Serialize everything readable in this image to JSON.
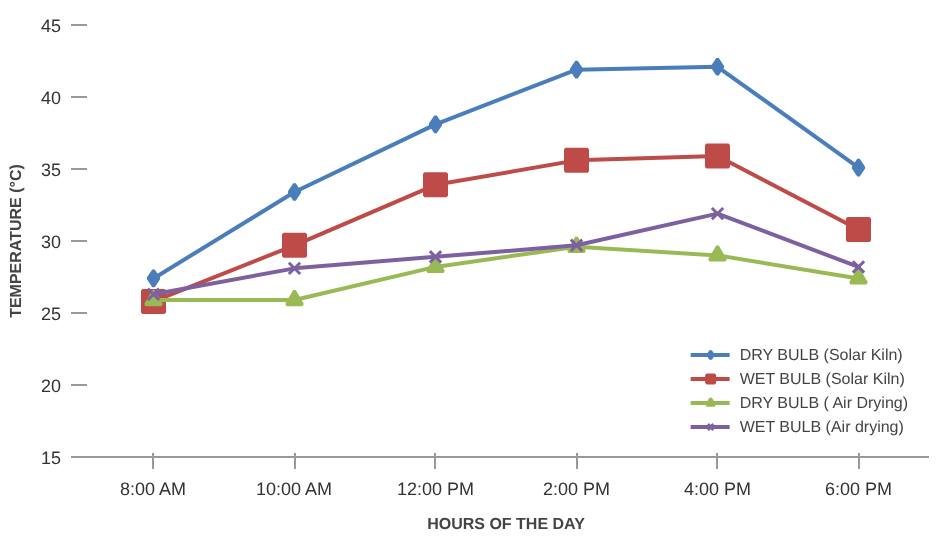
{
  "chart_data": {
    "type": "line",
    "xlabel": "HOURS OF THE DAY",
    "ylabel": "TEMPERATURE (°C)",
    "categories": [
      "8:00 AM",
      "10:00 AM",
      "12:00 PM",
      "2:00 PM",
      "4:00 PM",
      "6:00 PM"
    ],
    "series": [
      {
        "name": "DRY BULB (Solar Kiln)",
        "color": "#4a7ebb",
        "marker": "diamond",
        "values": [
          27.4,
          33.4,
          38.1,
          41.9,
          42.1,
          35.1
        ]
      },
      {
        "name": "WET BULB (Solar Kiln)",
        "color": "#be4b48",
        "marker": "square",
        "values": [
          25.8,
          29.7,
          33.9,
          35.6,
          35.9,
          30.8
        ]
      },
      {
        "name": "DRY BULB ( Air Drying)",
        "color": "#98b954",
        "marker": "triangle",
        "values": [
          25.9,
          25.9,
          28.2,
          29.6,
          29.0,
          27.4
        ]
      },
      {
        "name": "WET BULB (Air drying)",
        "color": "#7d60a0",
        "marker": "cross",
        "values": [
          26.3,
          28.1,
          28.9,
          29.7,
          31.9,
          28.2
        ]
      }
    ],
    "ylim": [
      15,
      45
    ],
    "yticks": [
      15,
      20,
      25,
      30,
      35,
      40,
      45
    ],
    "grid": false,
    "legend": "bottom right",
    "line_style": "solid"
  }
}
